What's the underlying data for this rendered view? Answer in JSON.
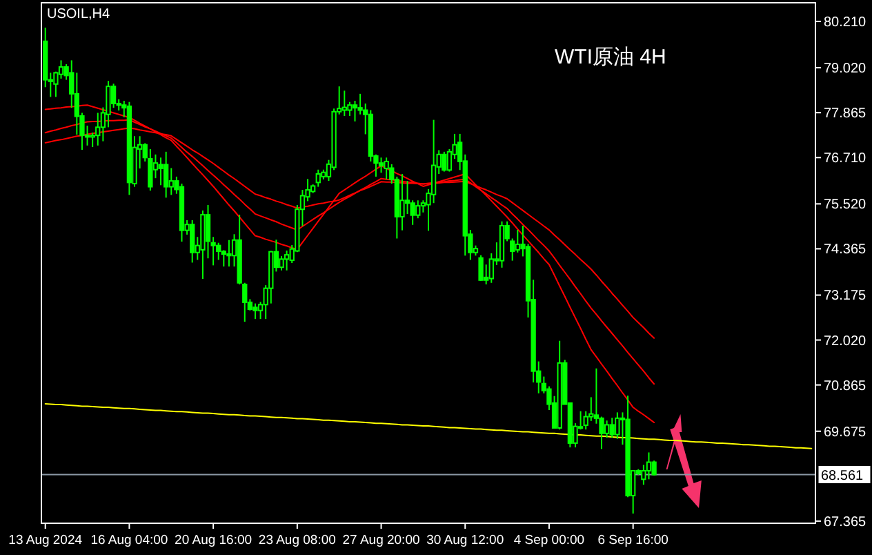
{
  "chart_data": {
    "type": "candlestick",
    "title": "USOIL,H4",
    "annotations": [
      "WTI原油 4H"
    ],
    "color": "#00ff00",
    "categories": [
      "13 Aug 2024",
      null,
      null,
      null,
      null,
      null,
      null,
      null,
      null,
      null,
      null,
      null,
      null,
      null,
      null,
      null,
      "16 Aug 04:00",
      null,
      null,
      null,
      null,
      null,
      null,
      null,
      null,
      null,
      null,
      null,
      null,
      null,
      null,
      null,
      "20 Aug 16:00",
      null,
      null,
      null,
      null,
      null,
      null,
      null,
      null,
      null,
      null,
      null,
      null,
      null,
      null,
      null,
      "23 Aug 08:00",
      null,
      null,
      null,
      null,
      null,
      null,
      null,
      null,
      null,
      null,
      null,
      null,
      null,
      null,
      null,
      "27 Aug 20:00",
      null,
      null,
      null,
      null,
      null,
      null,
      null,
      null,
      null,
      null,
      null,
      null,
      null,
      null,
      null,
      "30 Aug 12:00",
      null,
      null,
      null,
      null,
      null,
      null,
      null,
      null,
      null,
      null,
      null,
      null,
      null,
      null,
      null,
      "4 Sep 00:00",
      null,
      null,
      null,
      null,
      null,
      null,
      null,
      null,
      null,
      null,
      null,
      null,
      null,
      null,
      null,
      "6 Sep 16:00",
      null,
      null,
      null,
      null,
      null,
      null,
      null,
      null,
      null,
      null,
      null,
      null,
      null,
      null,
      null,
      null,
      null,
      null,
      null,
      null,
      null,
      null,
      null,
      null,
      null,
      null,
      null,
      null,
      null,
      null,
      null,
      null,
      null,
      null
    ],
    "ohlc": [
      [
        79.7,
        80.05,
        78.52,
        78.71
      ],
      [
        78.71,
        78.89,
        78.27,
        78.67
      ],
      [
        78.6,
        78.92,
        78.27,
        78.89
      ],
      [
        78.85,
        79.21,
        78.74,
        79.04
      ],
      [
        79.04,
        79.11,
        78.71,
        78.82
      ],
      [
        78.89,
        79.21,
        77.99,
        78.35
      ],
      [
        78.35,
        78.89,
        77.3,
        77.77
      ],
      [
        77.78,
        77.86,
        76.91,
        77.28
      ],
      [
        77.28,
        77.53,
        77.02,
        77.24
      ],
      [
        77.24,
        77.35,
        76.98,
        77.28
      ],
      [
        77.28,
        77.86,
        77.02,
        77.49
      ],
      [
        77.49,
        78.0,
        77.13,
        77.86
      ],
      [
        77.82,
        78.68,
        77.49,
        78.54
      ],
      [
        78.54,
        78.61,
        77.99,
        78.1
      ],
      [
        78.1,
        78.21,
        77.92,
        78.06
      ],
      [
        78.06,
        78.17,
        77.75,
        77.99
      ],
      [
        78.03,
        78.14,
        75.75,
        76.07
      ],
      [
        76.04,
        77.26,
        75.96,
        76.97
      ],
      [
        76.93,
        77.26,
        76.43,
        77.04
      ],
      [
        77.04,
        77.08,
        76.61,
        76.71
      ],
      [
        76.68,
        76.93,
        75.86,
        75.96
      ],
      [
        76.4,
        76.79,
        76.18,
        76.57
      ],
      [
        76.53,
        76.71,
        76.0,
        76.43
      ],
      [
        76.53,
        76.86,
        75.68,
        75.96
      ],
      [
        75.96,
        76.44,
        75.75,
        76.11
      ],
      [
        76.11,
        76.22,
        75.78,
        75.89
      ],
      [
        75.96,
        76.04,
        74.55,
        74.84
      ],
      [
        74.84,
        75.1,
        74.73,
        74.99
      ],
      [
        74.99,
        75.1,
        74.01,
        74.27
      ],
      [
        74.27,
        74.67,
        74.08,
        74.45
      ],
      [
        74.34,
        75.35,
        73.59,
        75.24
      ],
      [
        75.24,
        75.49,
        74.12,
        74.56
      ],
      [
        74.52,
        74.67,
        73.94,
        74.45
      ],
      [
        74.45,
        74.52,
        74.08,
        74.3
      ],
      [
        74.3,
        74.33,
        73.91,
        74.23
      ],
      [
        74.23,
        74.59,
        73.91,
        74.19
      ],
      [
        74.19,
        74.74,
        73.91,
        74.59
      ],
      [
        74.59,
        75.24,
        73.45,
        73.49
      ],
      [
        73.45,
        73.49,
        72.49,
        72.99
      ],
      [
        72.99,
        73.07,
        72.78,
        72.81
      ],
      [
        72.86,
        72.96,
        72.56,
        72.78
      ],
      [
        72.78,
        73.0,
        72.56,
        72.93
      ],
      [
        72.93,
        73.43,
        72.56,
        73.35
      ],
      [
        73.35,
        74.31,
        72.96,
        74.29
      ],
      [
        74.29,
        74.6,
        73.78,
        73.89
      ],
      [
        73.89,
        74.18,
        73.81,
        74.1
      ],
      [
        74.1,
        74.32,
        73.81,
        74.21
      ],
      [
        74.07,
        74.46,
        74.0,
        74.36
      ],
      [
        74.31,
        75.49,
        74.28,
        75.38
      ],
      [
        75.38,
        75.88,
        74.95,
        75.73
      ],
      [
        75.7,
        76.16,
        75.59,
        75.88
      ],
      [
        75.84,
        76.02,
        75.8,
        75.98
      ],
      [
        76.07,
        76.4,
        75.96,
        76.29
      ],
      [
        76.22,
        76.4,
        76.15,
        76.33
      ],
      [
        76.22,
        76.65,
        76.11,
        76.54
      ],
      [
        76.46,
        77.97,
        76.39,
        77.89
      ],
      [
        77.89,
        78.54,
        77.82,
        77.97
      ],
      [
        77.93,
        78.43,
        77.78,
        78.0
      ],
      [
        77.93,
        78.14,
        77.78,
        78.06
      ],
      [
        78.06,
        78.17,
        77.64,
        77.99
      ],
      [
        77.99,
        78.35,
        77.82,
        77.93
      ],
      [
        77.93,
        78.1,
        77.31,
        77.82
      ],
      [
        77.82,
        77.93,
        76.61,
        76.75
      ],
      [
        76.75,
        76.79,
        76.22,
        76.57
      ],
      [
        76.57,
        76.71,
        76.32,
        76.5
      ],
      [
        76.43,
        76.71,
        76.15,
        76.61
      ],
      [
        76.44,
        76.54,
        76.04,
        76.15
      ],
      [
        76.15,
        76.22,
        74.63,
        75.19
      ],
      [
        75.19,
        76.29,
        74.84,
        75.61
      ],
      [
        75.61,
        76.11,
        75.26,
        75.54
      ],
      [
        75.54,
        75.61,
        74.98,
        75.23
      ],
      [
        75.23,
        75.61,
        75.15,
        75.47
      ],
      [
        75.47,
        75.61,
        75.3,
        75.54
      ],
      [
        75.5,
        75.9,
        74.83,
        75.79
      ],
      [
        75.76,
        77.68,
        75.54,
        76.51
      ],
      [
        76.47,
        76.9,
        76.29,
        76.79
      ],
      [
        76.79,
        76.86,
        76.35,
        76.39
      ],
      [
        76.39,
        76.93,
        76.35,
        76.86
      ],
      [
        76.79,
        77.32,
        76.68,
        77.04
      ],
      [
        77.1,
        77.32,
        76.39,
        76.61
      ],
      [
        76.62,
        76.79,
        74.19,
        74.7
      ],
      [
        74.74,
        74.85,
        74.08,
        74.27
      ],
      [
        74.27,
        74.45,
        74.19,
        74.37
      ],
      [
        74.13,
        74.2,
        73.54,
        73.56
      ],
      [
        73.63,
        73.96,
        73.45,
        73.56
      ],
      [
        73.6,
        74.25,
        73.49,
        74.1
      ],
      [
        74.06,
        74.53,
        73.95,
        74.1
      ],
      [
        74.06,
        75.07,
        73.88,
        74.96
      ],
      [
        74.96,
        75.07,
        74.56,
        74.63
      ],
      [
        74.56,
        74.63,
        74.06,
        74.3
      ],
      [
        74.34,
        74.85,
        74.27,
        74.48
      ],
      [
        74.48,
        74.96,
        74.17,
        74.37
      ],
      [
        74.42,
        74.49,
        72.6,
        73.03
      ],
      [
        73.06,
        73.57,
        70.93,
        71.22
      ],
      [
        71.22,
        71.47,
        70.65,
        70.94
      ],
      [
        70.9,
        71.08,
        70.65,
        70.72
      ],
      [
        70.76,
        70.83,
        70.22,
        70.37
      ],
      [
        70.4,
        70.58,
        69.76,
        69.76
      ],
      [
        69.76,
        72.0,
        69.72,
        71.43
      ],
      [
        71.43,
        71.51,
        70.37,
        70.37
      ],
      [
        70.4,
        70.4,
        69.26,
        69.37
      ],
      [
        69.37,
        69.88,
        69.26,
        69.8
      ],
      [
        69.76,
        70.19,
        69.72,
        69.79
      ],
      [
        69.83,
        70.19,
        69.72,
        70.05
      ],
      [
        70.05,
        70.55,
        69.94,
        70.12
      ],
      [
        70.09,
        71.29,
        69.87,
        70.01
      ],
      [
        70.01,
        70.05,
        69.22,
        69.62
      ],
      [
        69.62,
        69.95,
        69.51,
        69.84
      ],
      [
        69.84,
        70.02,
        69.51,
        69.59
      ],
      [
        69.59,
        70.16,
        69.48,
        70.01
      ],
      [
        70.01,
        70.16,
        69.33,
        69.98
      ],
      [
        69.98,
        70.59,
        67.98,
        68.02
      ],
      [
        68.02,
        68.66,
        67.56,
        68.66
      ],
      [
        68.66,
        68.7,
        68.55,
        68.59
      ],
      [
        68.44,
        68.81,
        68.3,
        68.66
      ],
      [
        68.66,
        69.13,
        68.44,
        68.88
      ],
      [
        68.88,
        68.92,
        68.54,
        68.561
      ],
      null,
      null,
      null,
      null,
      null,
      null,
      null,
      null,
      null,
      null,
      null,
      null,
      null,
      null,
      null,
      null,
      null,
      null,
      null,
      null,
      null,
      null,
      null,
      null,
      null,
      null,
      null,
      null,
      null,
      null
    ],
    "series": [
      {
        "type": "line",
        "color": "#ff0000",
        "values": [
          77.09,
          77.12,
          77.15,
          77.17,
          77.2,
          77.23,
          77.26,
          77.28,
          77.31,
          77.33,
          77.35,
          77.37,
          77.39,
          77.41,
          77.43,
          77.45,
          77.47,
          77.45,
          77.42,
          77.4,
          77.37,
          77.35,
          77.32,
          77.3,
          77.27,
          77.18,
          77.09,
          77.0,
          76.91,
          76.83,
          76.74,
          76.65,
          76.56,
          76.46,
          76.36,
          76.26,
          76.17,
          76.07,
          75.97,
          75.87,
          75.77,
          75.73,
          75.68,
          75.64,
          75.59,
          75.55,
          75.5,
          75.46,
          75.41,
          75.44,
          75.46,
          75.49,
          75.52,
          75.54,
          75.57,
          75.59,
          75.62,
          75.68,
          75.74,
          75.8,
          75.86,
          75.91,
          75.97,
          76.03,
          76.09,
          76.08,
          76.08,
          76.07,
          76.06,
          76.05,
          76.05,
          76.04,
          76.03,
          76.04,
          76.05,
          76.06,
          76.07,
          76.07,
          76.08,
          76.09,
          76.1,
          76.04,
          75.99,
          75.93,
          75.88,
          75.82,
          75.76,
          75.71,
          75.65,
          75.55,
          75.45,
          75.35,
          75.25,
          75.15,
          75.05,
          74.95,
          74.85,
          74.72,
          74.6,
          74.47,
          74.34,
          74.22,
          74.09,
          73.97,
          73.84,
          73.69,
          73.53,
          73.38,
          73.22,
          73.07,
          72.91,
          72.76,
          72.6,
          72.47,
          72.34,
          72.2,
          72.07,
          null,
          null,
          null,
          null,
          null,
          null,
          null,
          null,
          null,
          null,
          null,
          null,
          null,
          null,
          null,
          null,
          null,
          null,
          null,
          null,
          null,
          null,
          null,
          null,
          null,
          null,
          null,
          null,
          null,
          null
        ]
      },
      {
        "type": "line",
        "color": "#ff0000",
        "values": [
          77.35,
          77.39,
          77.42,
          77.46,
          77.49,
          77.53,
          77.56,
          77.6,
          77.63,
          77.64,
          77.64,
          77.65,
          77.66,
          77.66,
          77.67,
          77.67,
          77.68,
          77.62,
          77.56,
          77.5,
          77.45,
          77.39,
          77.33,
          77.27,
          77.21,
          77.09,
          76.97,
          76.85,
          76.74,
          76.62,
          76.5,
          76.38,
          76.26,
          76.14,
          76.01,
          75.89,
          75.76,
          75.64,
          75.51,
          75.39,
          75.26,
          75.21,
          75.16,
          75.11,
          75.06,
          75.0,
          74.95,
          74.9,
          74.85,
          74.94,
          75.03,
          75.12,
          75.21,
          75.29,
          75.38,
          75.47,
          75.56,
          75.64,
          75.71,
          75.79,
          75.87,
          75.94,
          76.02,
          76.09,
          76.17,
          76.15,
          76.14,
          76.12,
          76.1,
          76.08,
          76.07,
          76.05,
          76.03,
          76.05,
          76.06,
          76.08,
          76.09,
          76.11,
          76.12,
          76.14,
          76.15,
          76.06,
          75.96,
          75.87,
          75.78,
          75.68,
          75.59,
          75.49,
          75.4,
          75.26,
          75.13,
          74.99,
          74.86,
          74.72,
          74.58,
          74.45,
          74.31,
          74.13,
          73.94,
          73.76,
          73.58,
          73.39,
          73.21,
          73.02,
          72.84,
          72.68,
          72.51,
          72.35,
          72.19,
          72.03,
          71.87,
          71.7,
          71.54,
          71.38,
          71.22,
          71.05,
          70.89,
          null,
          null,
          null,
          null,
          null,
          null,
          null,
          null,
          null,
          null,
          null,
          null,
          null,
          null,
          null,
          null,
          null,
          null,
          null,
          null,
          null,
          null,
          null,
          null,
          null,
          null,
          null,
          null,
          null,
          null
        ]
      },
      {
        "type": "line",
        "color": "#ff0000",
        "values": [
          77.95,
          77.96,
          77.98,
          77.99,
          78.01,
          78.02,
          78.03,
          78.05,
          78.06,
          78.02,
          77.98,
          77.94,
          77.9,
          77.86,
          77.82,
          77.78,
          77.74,
          77.67,
          77.59,
          77.52,
          77.45,
          77.37,
          77.3,
          77.22,
          77.15,
          77.0,
          76.86,
          76.71,
          76.56,
          76.41,
          76.27,
          76.12,
          75.97,
          75.81,
          75.65,
          75.49,
          75.34,
          75.18,
          75.02,
          74.86,
          74.7,
          74.66,
          74.61,
          74.57,
          74.53,
          74.48,
          74.44,
          74.39,
          74.35,
          74.53,
          74.71,
          74.89,
          75.07,
          75.25,
          75.43,
          75.61,
          75.79,
          75.88,
          75.97,
          76.06,
          76.15,
          76.23,
          76.32,
          76.41,
          76.5,
          76.43,
          76.37,
          76.3,
          76.24,
          76.17,
          76.1,
          76.04,
          75.97,
          76.01,
          76.05,
          76.09,
          76.13,
          76.17,
          76.21,
          76.25,
          76.29,
          76.15,
          76.01,
          75.87,
          75.74,
          75.6,
          75.46,
          75.32,
          75.18,
          75.03,
          74.87,
          74.72,
          74.57,
          74.42,
          74.27,
          74.11,
          73.96,
          73.69,
          73.41,
          73.14,
          72.86,
          72.59,
          72.32,
          72.04,
          71.77,
          71.59,
          71.4,
          71.22,
          71.03,
          70.85,
          70.66,
          70.48,
          70.29,
          70.19,
          70.1,
          70.0,
          69.9,
          null,
          null,
          null,
          null,
          null,
          null,
          null,
          null,
          null,
          null,
          null,
          null,
          null,
          null,
          null,
          null,
          null,
          null,
          null,
          null,
          null,
          null,
          null,
          null,
          null,
          null,
          null,
          null,
          null,
          null
        ]
      },
      {
        "type": "line",
        "color": "#ffff00",
        "values": [
          70.38,
          70.37,
          70.36,
          70.36,
          70.35,
          70.34,
          70.33,
          70.32,
          70.32,
          70.31,
          70.3,
          70.29,
          70.29,
          70.28,
          70.27,
          70.26,
          70.26,
          70.25,
          70.24,
          70.23,
          70.22,
          70.21,
          70.21,
          70.2,
          70.19,
          70.18,
          70.18,
          70.17,
          70.16,
          70.15,
          70.14,
          70.14,
          70.13,
          70.12,
          70.11,
          70.1,
          70.1,
          70.09,
          70.08,
          70.07,
          70.07,
          70.06,
          70.05,
          70.04,
          70.03,
          70.03,
          70.02,
          70.01,
          70.0,
          70.0,
          69.99,
          69.98,
          69.97,
          69.96,
          69.96,
          69.95,
          69.94,
          69.93,
          69.92,
          69.92,
          69.91,
          69.9,
          69.89,
          69.88,
          69.88,
          69.87,
          69.86,
          69.85,
          69.84,
          69.84,
          69.83,
          69.82,
          69.81,
          69.81,
          69.8,
          69.79,
          69.78,
          69.77,
          69.77,
          69.76,
          69.75,
          69.74,
          69.73,
          69.73,
          69.72,
          69.71,
          69.7,
          69.7,
          69.69,
          69.68,
          69.67,
          69.66,
          69.66,
          69.65,
          69.64,
          69.63,
          69.62,
          69.62,
          69.61,
          69.6,
          69.59,
          69.58,
          69.58,
          69.57,
          69.56,
          69.55,
          69.55,
          69.54,
          69.53,
          69.52,
          69.51,
          69.51,
          69.5,
          69.49,
          69.48,
          69.47,
          69.47,
          69.46,
          69.45,
          69.44,
          69.44,
          69.43,
          69.42,
          69.41,
          69.4,
          69.4,
          69.39,
          69.38,
          69.37,
          69.37,
          69.36,
          69.35,
          69.34,
          69.33,
          69.33,
          69.32,
          69.31,
          69.3,
          69.29,
          69.29,
          69.28,
          69.27,
          69.26,
          69.25,
          69.25,
          69.24,
          69.23
        ]
      }
    ],
    "ref_lines": [
      {
        "axis": "y",
        "value": 68.561,
        "label": "68.561",
        "color": "#8c99a6"
      }
    ],
    "ylim": [
      67.31,
      80.69
    ],
    "yticks": [
      {
        "value": 80.21,
        "label": "80.210"
      },
      {
        "value": 79.02,
        "label": "79.020"
      },
      {
        "value": 77.865,
        "label": "77.865"
      },
      {
        "value": 76.71,
        "label": "76.710"
      },
      {
        "value": 75.52,
        "label": "75.520"
      },
      {
        "value": 74.365,
        "label": "74.365"
      },
      {
        "value": 73.175,
        "label": "73.175"
      },
      {
        "value": 72.02,
        "label": "72.020"
      },
      {
        "value": 70.865,
        "label": "70.865"
      },
      {
        "value": 69.675,
        "label": "69.675"
      },
      {
        "value": 67.365,
        "label": "67.365"
      }
    ]
  }
}
